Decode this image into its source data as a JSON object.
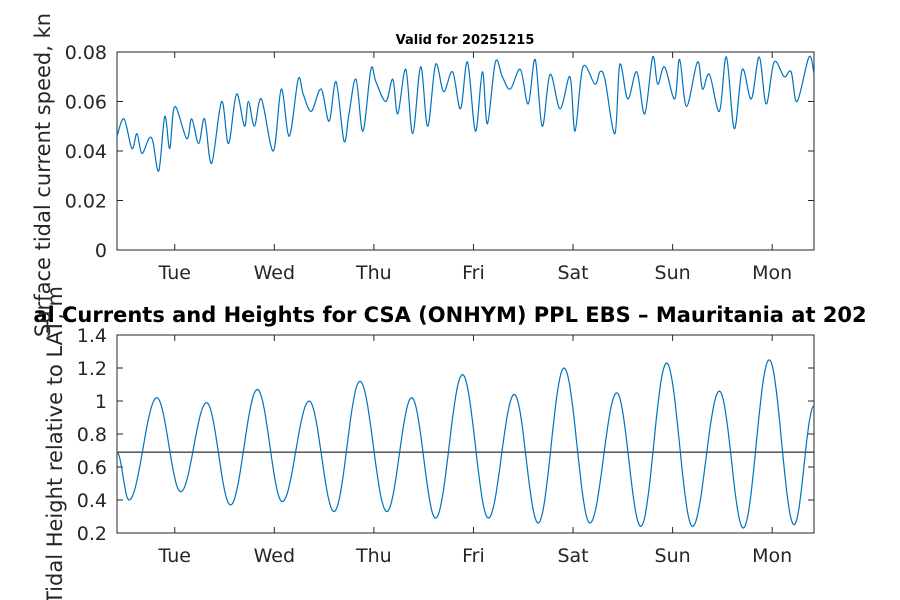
{
  "figure": {
    "main_title": "al Currents and Heights for CSA (ONHYM) PPL EBS  – Mauritania at 202",
    "colors": {
      "series": "#0072bd",
      "reference_line": "#000000",
      "axes": "#262626",
      "background": "#ffffff"
    }
  },
  "chart_data": [
    {
      "type": "line",
      "name": "current-speed",
      "title": "Valid for 20251215",
      "ylabel": "Surface tidal current speed, kn",
      "ylim": [
        0,
        0.08
      ],
      "yticks": [
        "0",
        "0.02",
        "0.04",
        "0.06",
        "0.08"
      ],
      "xlim_days": [
        0,
        7
      ],
      "xticks": [
        {
          "day": 0.58,
          "label": "Tue"
        },
        {
          "day": 1.58,
          "label": "Wed"
        },
        {
          "day": 2.58,
          "label": "Thu"
        },
        {
          "day": 3.58,
          "label": "Fri"
        },
        {
          "day": 4.58,
          "label": "Sat"
        },
        {
          "day": 5.58,
          "label": "Sun"
        },
        {
          "day": 6.58,
          "label": "Mon"
        }
      ],
      "series": [
        {
          "name": "Surface tidal current speed",
          "color": "#0072bd",
          "x": [
            0,
            0.07,
            0.15,
            0.2,
            0.25,
            0.32,
            0.36,
            0.42,
            0.48,
            0.53,
            0.58,
            0.7,
            0.75,
            0.82,
            0.88,
            0.95,
            1.05,
            1.12,
            1.2,
            1.28,
            1.32,
            1.38,
            1.45,
            1.57,
            1.65,
            1.73,
            1.82,
            1.87,
            1.95,
            2.05,
            2.13,
            2.2,
            2.28,
            2.33,
            2.4,
            2.47,
            2.55,
            2.6,
            2.7,
            2.77,
            2.82,
            2.9,
            2.97,
            3.05,
            3.12,
            3.2,
            3.28,
            3.37,
            3.45,
            3.52,
            3.6,
            3.67,
            3.72,
            3.8,
            3.87,
            3.95,
            4.05,
            4.13,
            4.2,
            4.27,
            4.35,
            4.45,
            4.55,
            4.6,
            4.68,
            4.8,
            4.85,
            4.9,
            5.0,
            5.05,
            5.13,
            5.22,
            5.3,
            5.38,
            5.43,
            5.5,
            5.6,
            5.65,
            5.72,
            5.83,
            5.88,
            5.95,
            6.05,
            6.12,
            6.2,
            6.28,
            6.37,
            6.45,
            6.52,
            6.6,
            6.7,
            6.77,
            6.83,
            6.95,
            7.0
          ],
          "values": [
            0.046,
            0.053,
            0.041,
            0.047,
            0.039,
            0.045,
            0.044,
            0.032,
            0.054,
            0.041,
            0.058,
            0.045,
            0.053,
            0.043,
            0.053,
            0.035,
            0.06,
            0.043,
            0.063,
            0.05,
            0.06,
            0.05,
            0.061,
            0.04,
            0.065,
            0.046,
            0.069,
            0.063,
            0.056,
            0.065,
            0.052,
            0.068,
            0.044,
            0.055,
            0.069,
            0.048,
            0.073,
            0.068,
            0.06,
            0.069,
            0.055,
            0.073,
            0.047,
            0.074,
            0.05,
            0.075,
            0.064,
            0.072,
            0.057,
            0.076,
            0.048,
            0.072,
            0.051,
            0.076,
            0.07,
            0.065,
            0.073,
            0.059,
            0.077,
            0.05,
            0.071,
            0.057,
            0.07,
            0.048,
            0.074,
            0.067,
            0.072,
            0.069,
            0.047,
            0.075,
            0.061,
            0.072,
            0.055,
            0.078,
            0.067,
            0.074,
            0.061,
            0.077,
            0.058,
            0.076,
            0.065,
            0.071,
            0.056,
            0.078,
            0.049,
            0.073,
            0.061,
            0.078,
            0.059,
            0.076,
            0.07,
            0.072,
            0.06,
            0.078,
            0.071
          ]
        }
      ]
    },
    {
      "type": "line",
      "name": "tidal-height",
      "title": "",
      "ylabel": "Tidal Height relative to LAT, m",
      "ylim": [
        0.2,
        1.4
      ],
      "yticks": [
        "0.2",
        "0.4",
        "0.6",
        "0.8",
        "1",
        "1.2",
        "1.4"
      ],
      "xlim_days": [
        0,
        7
      ],
      "xticks": [
        {
          "day": 0.58,
          "label": "Tue"
        },
        {
          "day": 1.58,
          "label": "Wed"
        },
        {
          "day": 2.58,
          "label": "Thu"
        },
        {
          "day": 3.58,
          "label": "Fri"
        },
        {
          "day": 4.58,
          "label": "Sat"
        },
        {
          "day": 5.58,
          "label": "Sun"
        },
        {
          "day": 6.58,
          "label": "Mon"
        }
      ],
      "reference_line": 0.69,
      "tides": [
        {
          "day": 0.0,
          "h": 0.69
        },
        {
          "day": 0.12,
          "h": 0.4
        },
        {
          "day": 0.4,
          "h": 1.02
        },
        {
          "day": 0.64,
          "h": 0.45
        },
        {
          "day": 0.9,
          "h": 0.99
        },
        {
          "day": 1.14,
          "h": 0.37
        },
        {
          "day": 1.41,
          "h": 1.07
        },
        {
          "day": 1.66,
          "h": 0.39
        },
        {
          "day": 1.93,
          "h": 1.0
        },
        {
          "day": 2.18,
          "h": 0.33
        },
        {
          "day": 2.44,
          "h": 1.12
        },
        {
          "day": 2.71,
          "h": 0.33
        },
        {
          "day": 2.96,
          "h": 1.02
        },
        {
          "day": 3.2,
          "h": 0.29
        },
        {
          "day": 3.47,
          "h": 1.16
        },
        {
          "day": 3.73,
          "h": 0.29
        },
        {
          "day": 3.99,
          "h": 1.04
        },
        {
          "day": 4.23,
          "h": 0.26
        },
        {
          "day": 4.49,
          "h": 1.2
        },
        {
          "day": 4.75,
          "h": 0.26
        },
        {
          "day": 5.02,
          "h": 1.05
        },
        {
          "day": 5.26,
          "h": 0.24
        },
        {
          "day": 5.52,
          "h": 1.23
        },
        {
          "day": 5.78,
          "h": 0.24
        },
        {
          "day": 6.05,
          "h": 1.06
        },
        {
          "day": 6.29,
          "h": 0.23
        },
        {
          "day": 6.55,
          "h": 1.25
        },
        {
          "day": 6.8,
          "h": 0.25
        },
        {
          "day": 7.0,
          "h": 0.97
        }
      ]
    }
  ]
}
